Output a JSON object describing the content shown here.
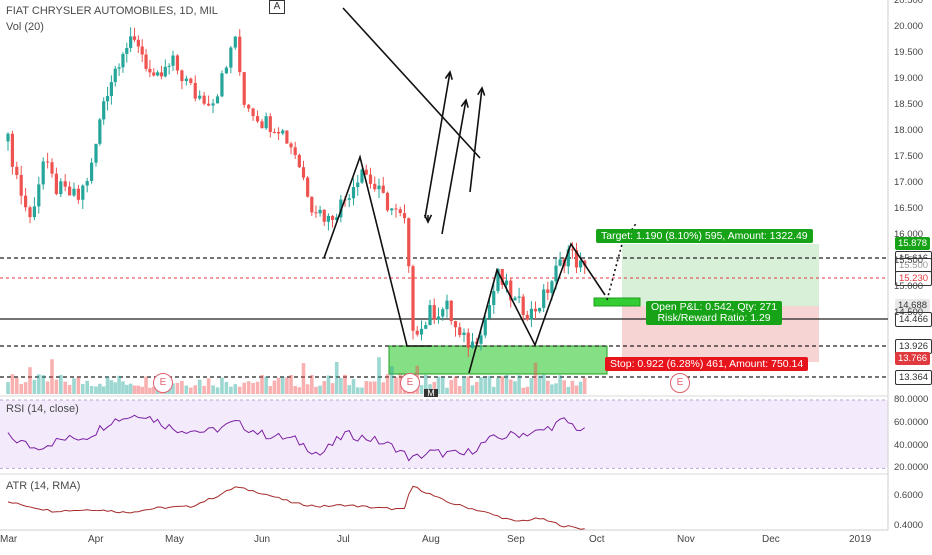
{
  "header": {
    "symbol_line": "FIAT CHRYSLER AUTOMOBILES, 1D, MIL",
    "volume_line": "Vol (20)",
    "rsi_line": "RSI (14, close)",
    "atr_line": "ATR (14, RMA)",
    "annotation_a": "A",
    "annotation_m": "M"
  },
  "price_labels": [
    {
      "value": "15.878",
      "bg": "#17a317",
      "fg": "#ffffff"
    },
    {
      "value": "15.616",
      "bg": "#ffffff",
      "fg": "#333333"
    },
    {
      "value": "15.500",
      "bg": "#ffffff",
      "fg": "#999999"
    },
    {
      "value": "15.230",
      "bg": "#ffffff",
      "fg": "#e0393e"
    },
    {
      "value": "14.688",
      "bg": "#e8e8e8",
      "fg": "#333333"
    },
    {
      "value": "14.466",
      "bg": "#ffffff",
      "fg": "#333333"
    },
    {
      "value": "13.926",
      "bg": "#ffffff",
      "fg": "#333333"
    },
    {
      "value": "13.766",
      "bg": "#e0393e",
      "fg": "#ffffff"
    },
    {
      "value": "13.364",
      "bg": "#ffffff",
      "fg": "#333333"
    }
  ],
  "position_boxes": {
    "target": "Target: 1.190 (8.10%) 595, Amount: 1322.49",
    "pnl_line1": "Open P&L: 0.542, Qty: 271",
    "pnl_line2": "Risk/Reward Ratio: 1.29",
    "stop": "Stop: 0.922 (6.28%) 461, Amount: 750.14"
  },
  "earnings_marks": [
    "E",
    "E",
    "E"
  ],
  "colors": {
    "up": "#26a69a",
    "down": "#ef5350",
    "rsi_line": "#7b1fa2",
    "atr_line": "#a52a2a",
    "target_zone": "#d8efd8",
    "stop_zone": "#f7d4d4",
    "support_zone": "#33cc33"
  },
  "chart_data": [
    {
      "type": "candlestick",
      "title": "FIAT CHRYSLER AUTOMOBILES, 1D, MIL",
      "y_ticks": [
        "20.500",
        "20.000",
        "19.500",
        "19.000",
        "18.500",
        "18.000",
        "17.500",
        "17.000",
        "16.500",
        "16.000",
        "15.500",
        "15.000",
        "14.500"
      ],
      "x_ticks": [
        "Mar",
        "Apr",
        "May",
        "Jun",
        "Jul",
        "Aug",
        "Sep",
        "Oct",
        "Nov",
        "Dec",
        "2019"
      ],
      "ylim": [
        13.2,
        20.6
      ],
      "anchors": [
        {
          "m": 0,
          "p": 17.8
        },
        {
          "m": 0.15,
          "p": 16.8
        },
        {
          "m": 0.25,
          "p": 16.3
        },
        {
          "m": 0.4,
          "p": 17.4
        },
        {
          "m": 0.55,
          "p": 16.9
        },
        {
          "m": 0.8,
          "p": 16.7
        },
        {
          "m": 0.95,
          "p": 17.3
        },
        {
          "m": 1.1,
          "p": 18.6
        },
        {
          "m": 1.35,
          "p": 19.6
        },
        {
          "m": 1.55,
          "p": 19.7
        },
        {
          "m": 1.75,
          "p": 18.9
        },
        {
          "m": 2.0,
          "p": 19.3
        },
        {
          "m": 2.25,
          "p": 18.7
        },
        {
          "m": 2.45,
          "p": 18.6
        },
        {
          "m": 2.6,
          "p": 19.2
        },
        {
          "m": 2.68,
          "p": 19.9
        },
        {
          "m": 2.8,
          "p": 18.6
        },
        {
          "m": 3.0,
          "p": 18.2
        },
        {
          "m": 3.2,
          "p": 18.1
        },
        {
          "m": 3.4,
          "p": 17.6
        },
        {
          "m": 3.6,
          "p": 16.6
        },
        {
          "m": 3.8,
          "p": 16.3
        },
        {
          "m": 4.0,
          "p": 16.7
        },
        {
          "m": 4.2,
          "p": 17.3
        },
        {
          "m": 4.35,
          "p": 16.9
        },
        {
          "m": 4.55,
          "p": 16.5
        },
        {
          "m": 4.72,
          "p": 16.2
        },
        {
          "m": 4.78,
          "p": 14.3
        },
        {
          "m": 4.9,
          "p": 14.2
        },
        {
          "m": 5.0,
          "p": 14.5
        },
        {
          "m": 5.2,
          "p": 14.6
        },
        {
          "m": 5.35,
          "p": 14.0
        },
        {
          "m": 5.5,
          "p": 13.9
        },
        {
          "m": 5.65,
          "p": 14.4
        },
        {
          "m": 5.8,
          "p": 15.2
        },
        {
          "m": 6.0,
          "p": 14.7
        },
        {
          "m": 6.2,
          "p": 14.5
        },
        {
          "m": 6.35,
          "p": 14.8
        },
        {
          "m": 6.5,
          "p": 15.3
        },
        {
          "m": 6.65,
          "p": 15.7
        },
        {
          "m": 6.85,
          "p": 15.3
        }
      ]
    },
    {
      "type": "line",
      "title": "RSI (14, close)",
      "y_ticks": [
        "80.0000",
        "60.0000",
        "40.0000",
        "20.0000"
      ],
      "ylim": [
        15,
        85
      ],
      "anchors": [
        {
          "m": 0,
          "p": 48
        },
        {
          "m": 0.3,
          "p": 38
        },
        {
          "m": 0.6,
          "p": 45
        },
        {
          "m": 0.9,
          "p": 48
        },
        {
          "m": 1.2,
          "p": 62
        },
        {
          "m": 1.6,
          "p": 68
        },
        {
          "m": 2.0,
          "p": 55
        },
        {
          "m": 2.4,
          "p": 52
        },
        {
          "m": 2.7,
          "p": 60
        },
        {
          "m": 3.0,
          "p": 50
        },
        {
          "m": 3.4,
          "p": 45
        },
        {
          "m": 3.7,
          "p": 32
        },
        {
          "m": 4.0,
          "p": 50
        },
        {
          "m": 4.3,
          "p": 46
        },
        {
          "m": 4.6,
          "p": 38
        },
        {
          "m": 4.78,
          "p": 28
        },
        {
          "m": 5.0,
          "p": 34
        },
        {
          "m": 5.4,
          "p": 32
        },
        {
          "m": 5.7,
          "p": 45
        },
        {
          "m": 6.0,
          "p": 50
        },
        {
          "m": 6.3,
          "p": 52
        },
        {
          "m": 6.6,
          "p": 62
        },
        {
          "m": 6.85,
          "p": 52
        }
      ]
    },
    {
      "type": "line",
      "title": "ATR (14, RMA)",
      "y_ticks": [
        "0.6000",
        "0.4000"
      ],
      "ylim": [
        0.32,
        0.72
      ],
      "anchors": [
        {
          "m": 0,
          "p": 0.56
        },
        {
          "m": 0.5,
          "p": 0.5
        },
        {
          "m": 1.0,
          "p": 0.51
        },
        {
          "m": 1.4,
          "p": 0.49
        },
        {
          "m": 1.8,
          "p": 0.52
        },
        {
          "m": 2.2,
          "p": 0.53
        },
        {
          "m": 2.5,
          "p": 0.6
        },
        {
          "m": 2.7,
          "p": 0.66
        },
        {
          "m": 3.0,
          "p": 0.62
        },
        {
          "m": 3.4,
          "p": 0.55
        },
        {
          "m": 3.7,
          "p": 0.53
        },
        {
          "m": 4.0,
          "p": 0.54
        },
        {
          "m": 4.4,
          "p": 0.52
        },
        {
          "m": 4.7,
          "p": 0.51
        },
        {
          "m": 4.78,
          "p": 0.67
        },
        {
          "m": 5.2,
          "p": 0.56
        },
        {
          "m": 5.6,
          "p": 0.5
        },
        {
          "m": 6.0,
          "p": 0.43
        },
        {
          "m": 6.3,
          "p": 0.45
        },
        {
          "m": 6.6,
          "p": 0.4
        },
        {
          "m": 6.85,
          "p": 0.38
        }
      ]
    }
  ]
}
